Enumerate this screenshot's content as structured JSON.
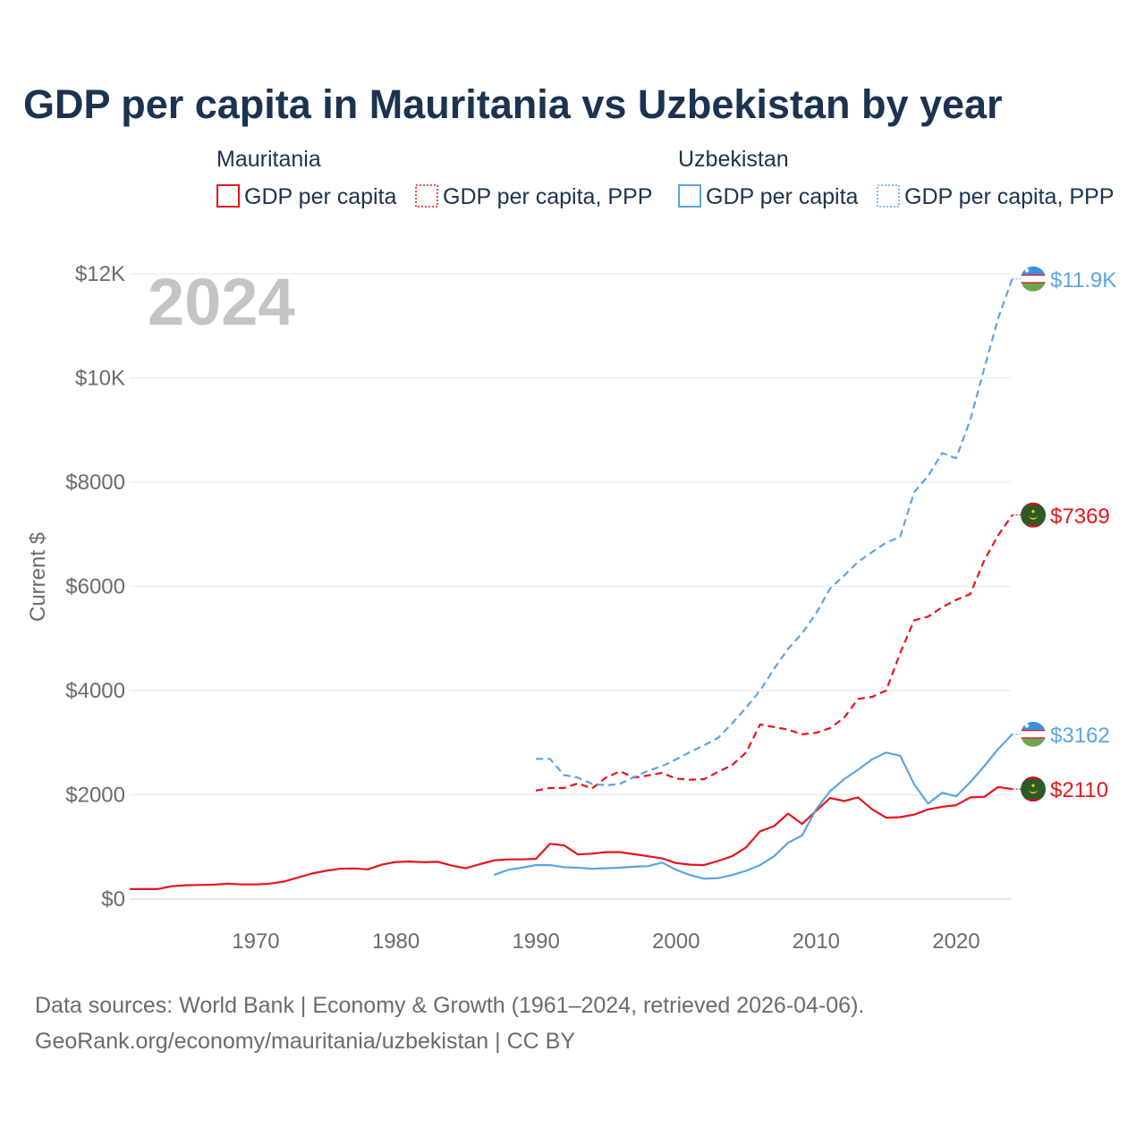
{
  "chart_data": {
    "type": "line",
    "title": "GDP per capita in Mauritania vs Uzbekistan by year",
    "ylabel": "Current $",
    "year_label": "2024",
    "xlim": [
      1961,
      2024
    ],
    "ylim": [
      0,
      12000
    ],
    "x_ticks": [
      1970,
      1980,
      1990,
      2000,
      2010,
      2020
    ],
    "y_ticks": [
      {
        "value": 0,
        "label": "$0"
      },
      {
        "value": 2000,
        "label": "$2000"
      },
      {
        "value": 4000,
        "label": "$4000"
      },
      {
        "value": 6000,
        "label": "$6000"
      },
      {
        "value": 8000,
        "label": "$8000"
      },
      {
        "value": 10000,
        "label": "$10K"
      },
      {
        "value": 12000,
        "label": "$12K"
      }
    ],
    "legend": [
      {
        "group": "Mauritania",
        "color": "#e8141b",
        "items": [
          {
            "label": "GDP per capita",
            "style": "solid"
          },
          {
            "label": "GDP per capita, PPP",
            "style": "dotted"
          }
        ]
      },
      {
        "group": "Uzbekistan",
        "color": "#5ba4e0",
        "items": [
          {
            "label": "GDP per capita",
            "style": "solid"
          },
          {
            "label": "GDP per capita, PPP",
            "style": "dotted"
          }
        ]
      }
    ],
    "series": [
      {
        "name": "Mauritania GDP per capita",
        "country": "Mauritania",
        "color": "#e8141b",
        "dashed": false,
        "end_label": "$2110",
        "flag": "mauritania-flag",
        "x": [
          1961,
          1962,
          1963,
          1964,
          1965,
          1966,
          1967,
          1968,
          1969,
          1970,
          1971,
          1972,
          1973,
          1974,
          1975,
          1976,
          1977,
          1978,
          1979,
          1980,
          1981,
          1982,
          1983,
          1984,
          1985,
          1986,
          1987,
          1988,
          1989,
          1990,
          1991,
          1992,
          1993,
          1994,
          1995,
          1996,
          1997,
          1998,
          1999,
          2000,
          2001,
          2002,
          2003,
          2004,
          2005,
          2006,
          2007,
          2008,
          2009,
          2010,
          2011,
          2012,
          2013,
          2014,
          2015,
          2016,
          2017,
          2018,
          2019,
          2020,
          2021,
          2022,
          2023,
          2024
        ],
        "values": [
          190,
          190,
          190,
          245,
          265,
          270,
          275,
          295,
          280,
          280,
          295,
          335,
          410,
          490,
          540,
          580,
          585,
          570,
          660,
          710,
          720,
          705,
          715,
          640,
          590,
          670,
          740,
          760,
          760,
          770,
          1060,
          1030,
          855,
          870,
          900,
          900,
          860,
          820,
          780,
          690,
          660,
          650,
          730,
          820,
          990,
          1300,
          1400,
          1640,
          1440,
          1690,
          1940,
          1880,
          1950,
          1720,
          1560,
          1570,
          1620,
          1720,
          1770,
          1800,
          1950,
          1960,
          2150,
          2110
        ]
      },
      {
        "name": "Mauritania GDP per capita, PPP",
        "country": "Mauritania",
        "color": "#e8141b",
        "dashed": true,
        "end_label": "$7369",
        "flag": "mauritania-flag",
        "x": [
          1990,
          1991,
          1992,
          1993,
          1994,
          1995,
          1996,
          1997,
          1998,
          1999,
          2000,
          2001,
          2002,
          2003,
          2004,
          2005,
          2006,
          2007,
          2008,
          2009,
          2010,
          2011,
          2012,
          2013,
          2014,
          2015,
          2016,
          2017,
          2018,
          2019,
          2020,
          2021,
          2022,
          2023,
          2024
        ],
        "values": [
          2080,
          2130,
          2130,
          2220,
          2120,
          2330,
          2450,
          2330,
          2370,
          2420,
          2310,
          2290,
          2300,
          2440,
          2570,
          2810,
          3350,
          3300,
          3250,
          3160,
          3190,
          3280,
          3480,
          3840,
          3880,
          4000,
          4720,
          5350,
          5420,
          5600,
          5740,
          5850,
          6500,
          6980,
          7369
        ]
      },
      {
        "name": "Uzbekistan GDP per capita",
        "country": "Uzbekistan",
        "color": "#5ba4e0",
        "dashed": false,
        "end_label": "$3162",
        "flag": "uzbekistan-flag",
        "x": [
          1987,
          1988,
          1989,
          1990,
          1991,
          1992,
          1993,
          1994,
          1995,
          1996,
          1997,
          1998,
          1999,
          2000,
          2001,
          2002,
          2003,
          2004,
          2005,
          2006,
          2007,
          2008,
          2009,
          2010,
          2011,
          2012,
          2013,
          2014,
          2015,
          2016,
          2017,
          2018,
          2019,
          2020,
          2021,
          2022,
          2023,
          2024
        ],
        "values": [
          460,
          560,
          600,
          650,
          650,
          610,
          600,
          580,
          590,
          600,
          620,
          630,
          700,
          560,
          460,
          390,
          400,
          460,
          540,
          650,
          820,
          1080,
          1220,
          1720,
          2070,
          2300,
          2480,
          2680,
          2810,
          2750,
          2200,
          1830,
          2040,
          1970,
          2240,
          2550,
          2880,
          3162
        ]
      },
      {
        "name": "Uzbekistan GDP per capita, PPP",
        "country": "Uzbekistan",
        "color": "#5ba4e0",
        "dashed": true,
        "end_label": "$11.9K",
        "flag": "uzbekistan-flag",
        "x": [
          1990,
          1991,
          1992,
          1993,
          1994,
          1995,
          1996,
          1997,
          1998,
          1999,
          2000,
          2001,
          2002,
          2003,
          2004,
          2005,
          2006,
          2007,
          2008,
          2009,
          2010,
          2011,
          2012,
          2013,
          2014,
          2015,
          2016,
          2017,
          2018,
          2019,
          2020,
          2021,
          2022,
          2023,
          2024
        ],
        "values": [
          2690,
          2690,
          2380,
          2330,
          2210,
          2180,
          2210,
          2340,
          2460,
          2550,
          2680,
          2820,
          2950,
          3090,
          3370,
          3670,
          4000,
          4420,
          4800,
          5100,
          5480,
          5960,
          6210,
          6470,
          6660,
          6840,
          6950,
          7810,
          8120,
          8560,
          8460,
          9190,
          10180,
          11150,
          11900
        ]
      }
    ],
    "source_line1": "Data sources: World Bank | Economy & Growth (1961–2024, retrieved 2026-04-06).",
    "source_line2": "GeoRank.org/economy/mauritania/uzbekistan | CC BY"
  }
}
